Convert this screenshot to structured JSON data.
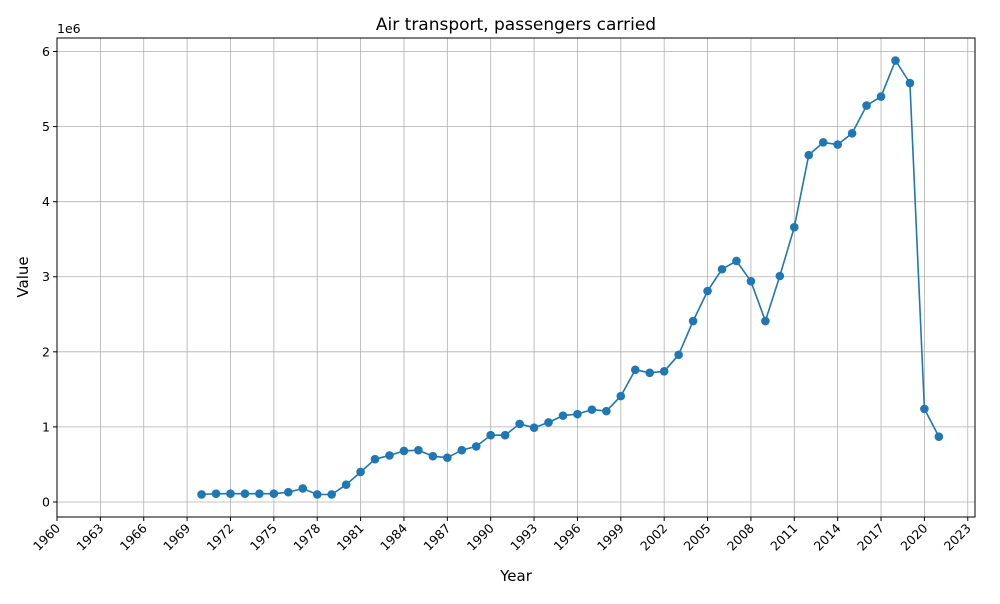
{
  "chart_data": {
    "type": "line",
    "title": "Air transport, passengers carried",
    "xlabel": "Year",
    "ylabel": "Value",
    "y_offset_label": "1e6",
    "xlim": [
      1960,
      2023.5
    ],
    "ylim": [
      -200000,
      6180000
    ],
    "x_ticks": [
      1960,
      1963,
      1966,
      1969,
      1972,
      1975,
      1978,
      1981,
      1984,
      1987,
      1990,
      1993,
      1996,
      1999,
      2002,
      2005,
      2008,
      2011,
      2014,
      2017,
      2020,
      2023
    ],
    "y_ticks": [
      0,
      1000000,
      2000000,
      3000000,
      4000000,
      5000000,
      6000000
    ],
    "y_tick_labels": [
      "0",
      "1",
      "2",
      "3",
      "4",
      "5",
      "6"
    ],
    "grid": true,
    "line_color": "#1f77b4",
    "marker": "circle",
    "series": [
      {
        "x": [
          1970,
          1971,
          1972,
          1973,
          1974,
          1975,
          1976,
          1977,
          1978,
          1979,
          1980,
          1981,
          1982,
          1983,
          1984,
          1985,
          1986,
          1987,
          1988,
          1989,
          1990,
          1991,
          1992,
          1993,
          1994,
          1995,
          1996,
          1997,
          1998,
          1999,
          2000,
          2001,
          2002,
          2003,
          2004,
          2005,
          2006,
          2007,
          2008,
          2009,
          2010,
          2011,
          2012,
          2013,
          2014,
          2015,
          2016,
          2017,
          2018,
          2019,
          2020,
          2021
        ],
        "values": [
          100000,
          110000,
          110000,
          110000,
          110000,
          110000,
          130000,
          180000,
          100000,
          100000,
          230000,
          400000,
          570000,
          620000,
          680000,
          690000,
          610000,
          590000,
          690000,
          740000,
          890000,
          890000,
          1040000,
          990000,
          1060000,
          1150000,
          1170000,
          1230000,
          1210000,
          1410000,
          1760000,
          1720000,
          1740000,
          1960000,
          2410000,
          2810000,
          3100000,
          3210000,
          2940000,
          2410000,
          3010000,
          3660000,
          4620000,
          4790000,
          4760000,
          4910000,
          5280000,
          5400000,
          5880000,
          5580000,
          1240000,
          870000
        ]
      }
    ]
  }
}
